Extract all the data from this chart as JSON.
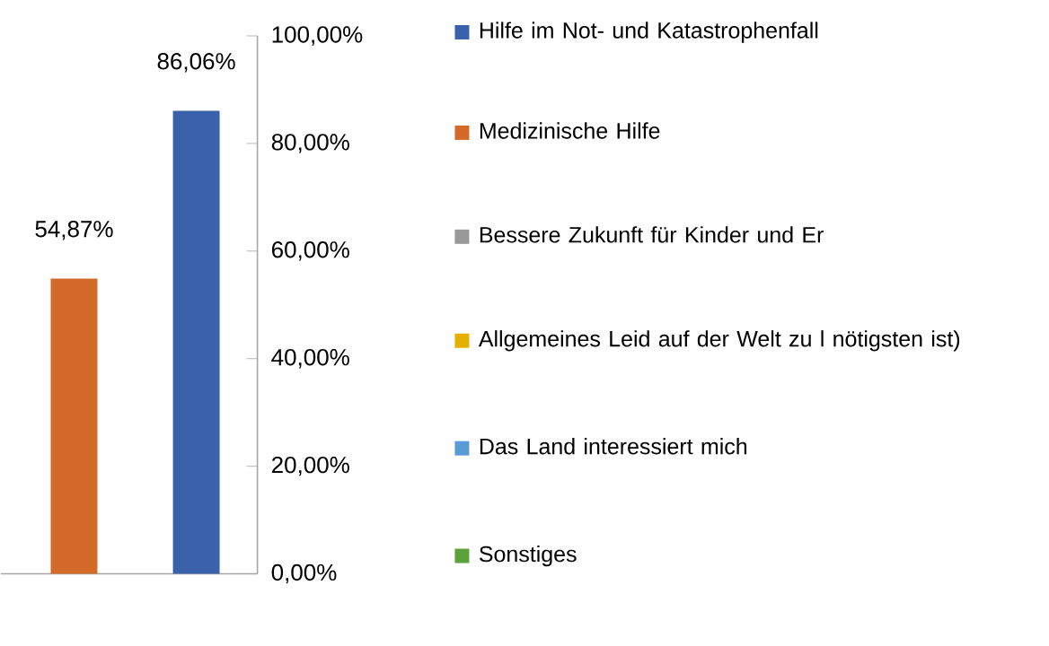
{
  "chart_data": {
    "type": "bar",
    "categories": [
      null,
      null
    ],
    "series": [
      {
        "name": "Hilfe im Not- und Katastrophenfall",
        "color": "#3a62aa",
        "values": [
          null,
          86.06
        ],
        "value_labels": [
          null,
          "86,06%"
        ]
      },
      {
        "name": "Medizinische Hilfe",
        "color": "#d46a2a",
        "values": [
          54.87,
          null
        ],
        "value_labels": [
          "54,87%",
          null
        ]
      },
      {
        "name": "Bessere Zukunft für Kinder und Er",
        "color": "#999999",
        "values": [
          null,
          null
        ]
      },
      {
        "name": "Allgemeines Leid auf der Welt zu l nötigsten ist)",
        "color": "#e6b000",
        "values": [
          null,
          null
        ]
      },
      {
        "name": "Das Land interessiert mich",
        "color": "#5b9bd5",
        "values": [
          null,
          null
        ]
      },
      {
        "name": "Sonstiges",
        "color": "#5ba23c",
        "values": [
          null,
          null
        ]
      }
    ],
    "ylim": [
      0,
      100
    ],
    "yticks": [
      {
        "value": 0,
        "label": "0,00%"
      },
      {
        "value": 20,
        "label": "20,00%"
      },
      {
        "value": 40,
        "label": "40,00%"
      },
      {
        "value": 60,
        "label": "60,00%"
      },
      {
        "value": 80,
        "label": "80,00%"
      },
      {
        "value": 100,
        "label": "100,00%"
      }
    ],
    "legend": "right"
  }
}
